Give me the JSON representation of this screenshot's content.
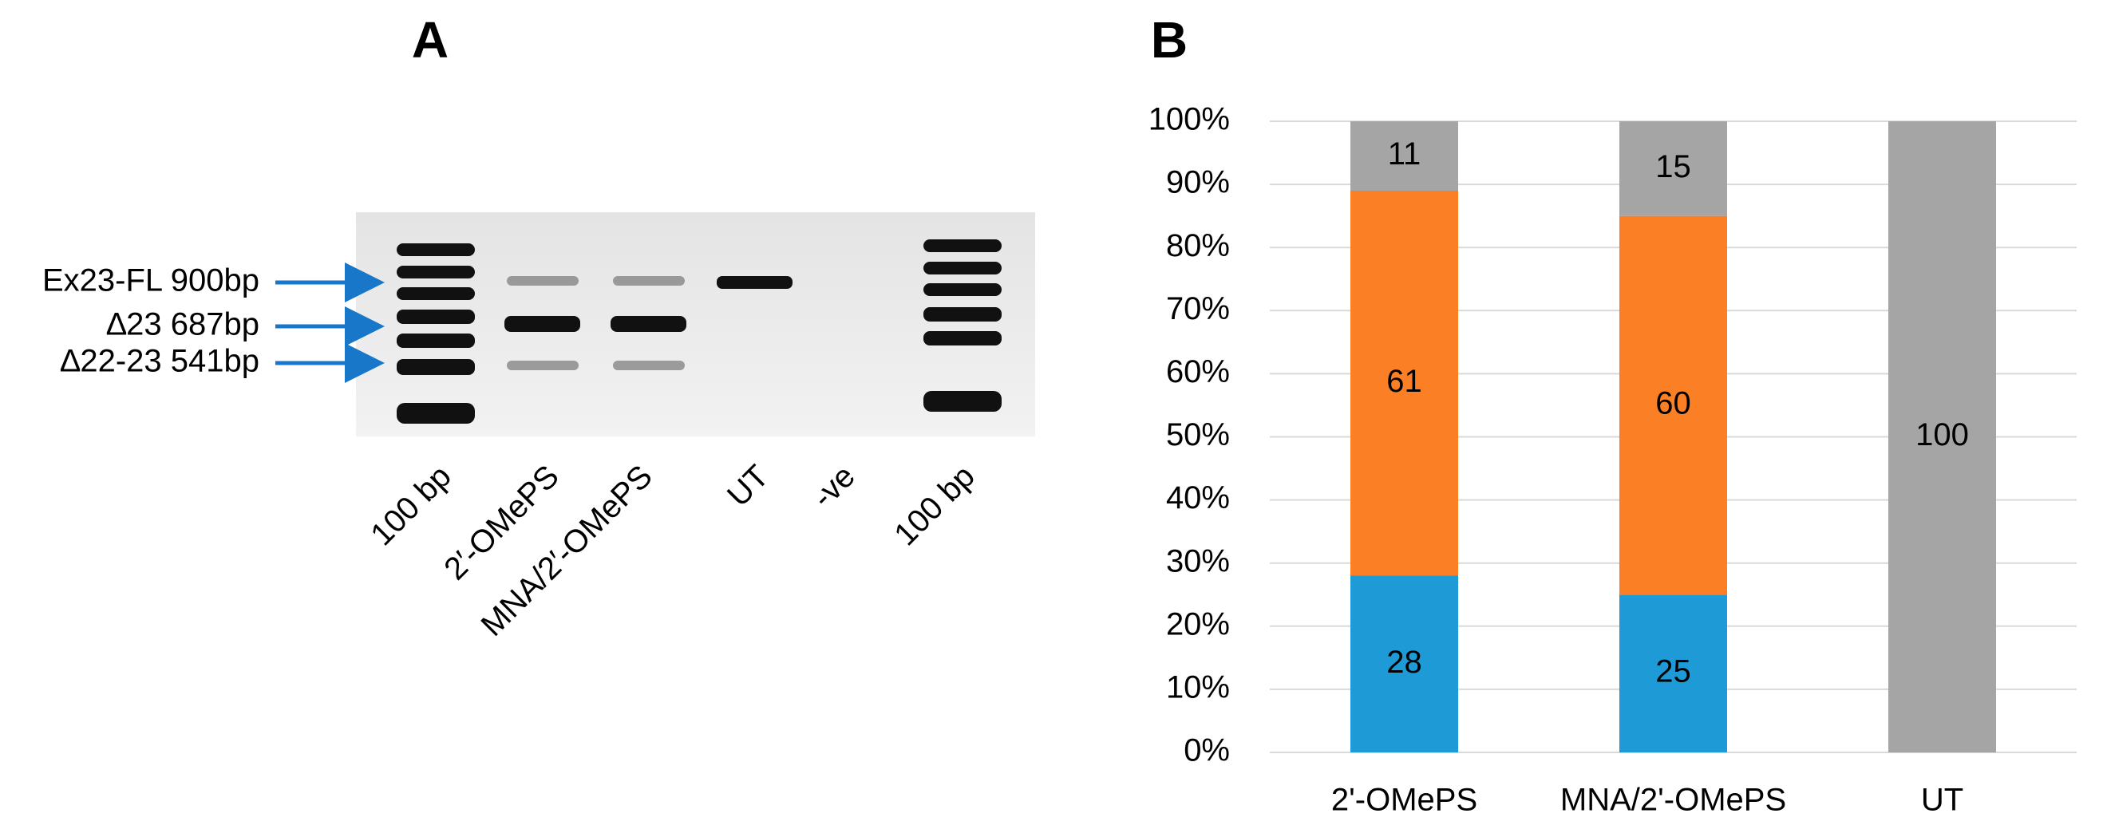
{
  "panel_a": {
    "title": "A",
    "band_labels": [
      "Ex23-FL 900bp",
      "∆23 687bp",
      "∆22-23 541bp"
    ],
    "lane_labels": [
      "100 bp",
      "2′-OMePS",
      "MNA/2′-OMePS",
      "UT",
      "-ve",
      "100 bp"
    ]
  },
  "chart_data": {
    "type": "stacked-bar",
    "title": "B",
    "categories": [
      "2'-OMePS",
      "MNA/2'-OMePS",
      "UT"
    ],
    "series": [
      {
        "color": "#1e9ad6",
        "values": [
          28,
          25,
          null
        ]
      },
      {
        "color": "#fb7f25",
        "values": [
          61,
          60,
          null
        ]
      },
      {
        "color": "#a5a5a5",
        "values": [
          11,
          15,
          100
        ]
      }
    ],
    "ylim": [
      0,
      100
    ],
    "yticks": [
      {
        "value": 0,
        "label": "0%"
      },
      {
        "value": 10,
        "label": "10%"
      },
      {
        "value": 20,
        "label": "20%"
      },
      {
        "value": 30,
        "label": "30%"
      },
      {
        "value": 40,
        "label": "40%"
      },
      {
        "value": 50,
        "label": "50%"
      },
      {
        "value": 60,
        "label": "60%"
      },
      {
        "value": 70,
        "label": "70%"
      },
      {
        "value": 80,
        "label": "80%"
      },
      {
        "value": 90,
        "label": "90%"
      },
      {
        "value": 100,
        "label": "100%"
      }
    ],
    "grid": true
  }
}
